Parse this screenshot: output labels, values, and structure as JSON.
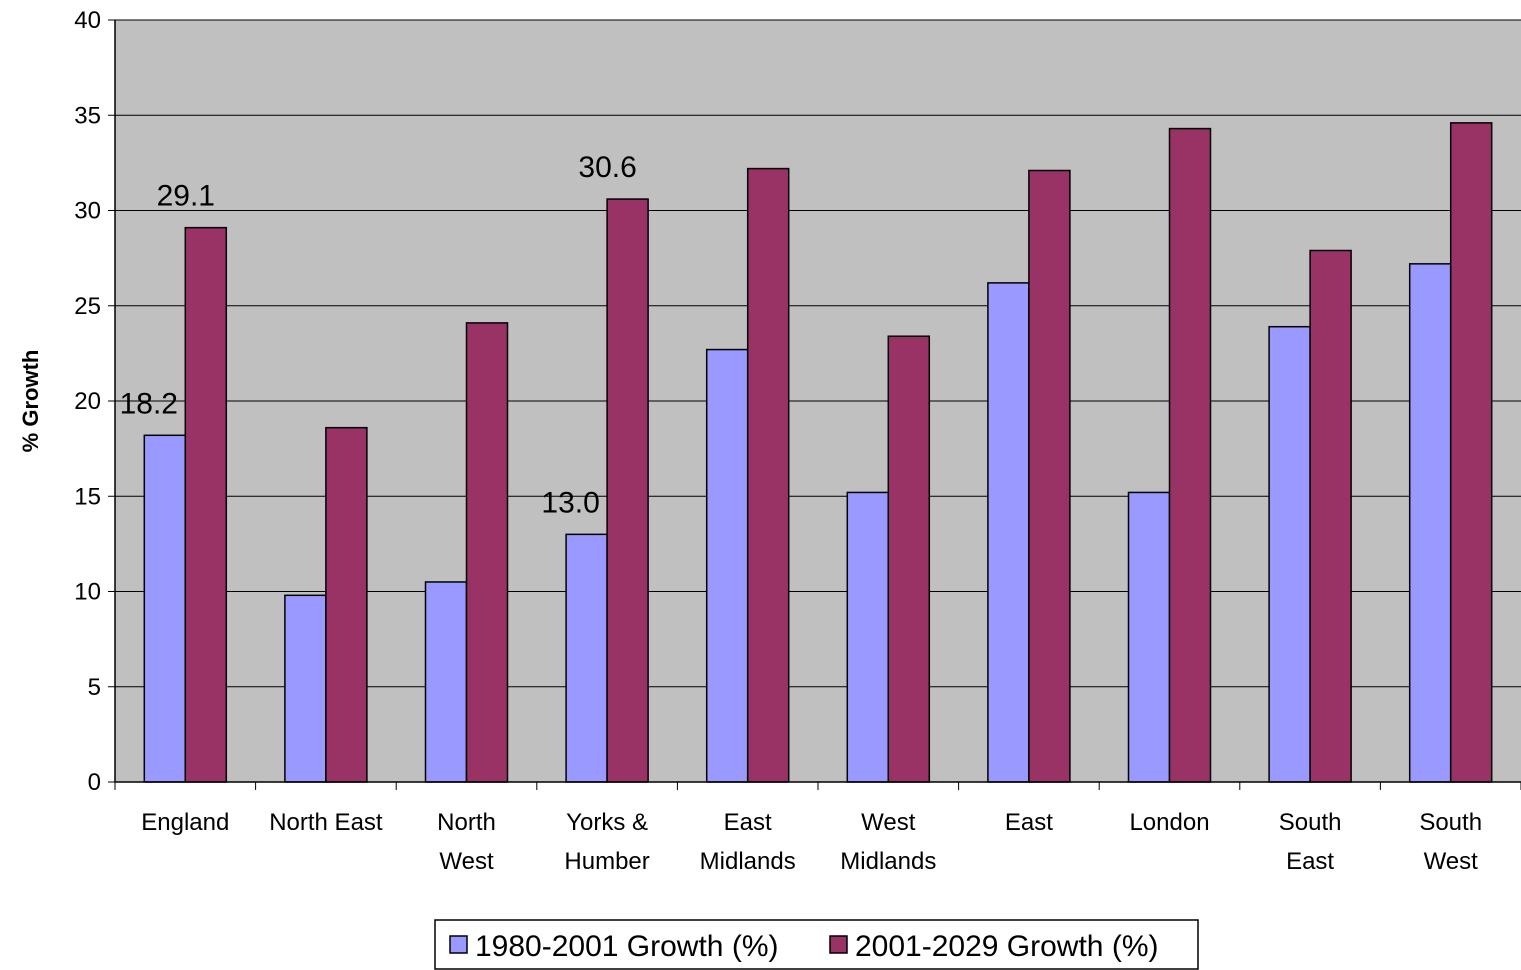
{
  "chart_data": {
    "type": "bar",
    "title": "",
    "xlabel": "",
    "ylabel": "% Growth",
    "ylim": [
      0,
      40
    ],
    "yticks": [
      0,
      5,
      10,
      15,
      20,
      25,
      30,
      35,
      40
    ],
    "grid": true,
    "legend_position": "bottom",
    "categories": [
      [
        "England"
      ],
      [
        "North East"
      ],
      [
        "North",
        "West"
      ],
      [
        "Yorks &",
        "Humber"
      ],
      [
        "East",
        "Midlands"
      ],
      [
        "West",
        "Midlands"
      ],
      [
        "East"
      ],
      [
        "London"
      ],
      [
        "South",
        "East"
      ],
      [
        "South",
        "West"
      ]
    ],
    "series": [
      {
        "name": "1980-2001 Growth (%)",
        "color": "#9999ff",
        "values": [
          18.2,
          9.8,
          10.5,
          13.0,
          22.7,
          15.2,
          26.2,
          15.2,
          23.9,
          27.2
        ]
      },
      {
        "name": "2001-2029 Growth (%)",
        "color": "#993366",
        "values": [
          29.1,
          18.6,
          24.1,
          30.6,
          32.2,
          23.4,
          32.1,
          34.3,
          27.9,
          34.6
        ]
      }
    ],
    "data_labels": [
      {
        "series": 0,
        "index": 0,
        "text": "18.2"
      },
      {
        "series": 1,
        "index": 0,
        "text": "29.1"
      },
      {
        "series": 0,
        "index": 3,
        "text": "13.0"
      },
      {
        "series": 1,
        "index": 3,
        "text": "30.6"
      }
    ],
    "plot_background": "#c0c0c0"
  }
}
